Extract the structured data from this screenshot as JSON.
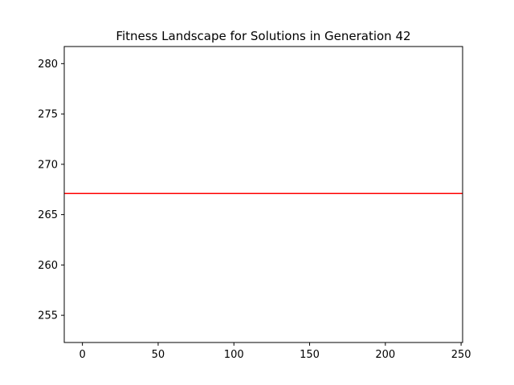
{
  "chart_data": {
    "type": "line",
    "title": "Fitness Landscape for Solutions in Generation 42",
    "xlabel": "",
    "ylabel": "",
    "xlim": [
      -12,
      251
    ],
    "ylim": [
      252.3,
      281.7
    ],
    "x_ticks": [
      0,
      50,
      100,
      150,
      200,
      250
    ],
    "y_ticks": [
      255,
      260,
      265,
      270,
      275,
      280
    ],
    "grid": false,
    "series": [
      {
        "color": "#ff0000",
        "x": [
          -12,
          251
        ],
        "values": [
          267.1,
          267.1
        ]
      }
    ]
  }
}
